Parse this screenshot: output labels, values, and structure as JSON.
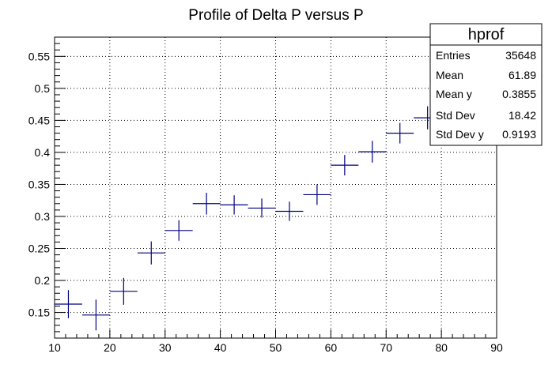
{
  "chart_data": {
    "type": "scatter",
    "title": "Profile of Delta P versus P",
    "xlabel": "",
    "ylabel": "",
    "xlim": [
      10,
      90
    ],
    "ylim": [
      0.11,
      0.58
    ],
    "x_ticks": [
      10,
      20,
      30,
      40,
      50,
      60,
      70,
      80,
      90
    ],
    "y_ticks": [
      0.15,
      0.2,
      0.25,
      0.3,
      0.35,
      0.4,
      0.45,
      0.5,
      0.55
    ],
    "grid": true,
    "marker_color": "#00007f",
    "series": [
      {
        "x": [
          12.5,
          17.5,
          22.5,
          27.5,
          32.5,
          37.5,
          42.5,
          47.5,
          52.5,
          57.5,
          62.5,
          67.5,
          72.5,
          77.5
        ],
        "y": [
          0.163,
          0.146,
          0.183,
          0.243,
          0.278,
          0.32,
          0.318,
          0.313,
          0.308,
          0.334,
          0.38,
          0.401,
          0.43,
          0.454
        ],
        "x_half_width": 2.5,
        "y_err": [
          0.022,
          0.024,
          0.021,
          0.018,
          0.016,
          0.017,
          0.015,
          0.015,
          0.015,
          0.016,
          0.016,
          0.017,
          0.016,
          0.018
        ]
      }
    ]
  },
  "stats_box": {
    "title": "hprof",
    "rows": [
      {
        "label": "Entries",
        "value": "35648"
      },
      {
        "label": "Mean",
        "value": "61.89"
      },
      {
        "label": "Mean y",
        "value": "0.3855"
      },
      {
        "label": "Std Dev",
        "value": "18.42"
      },
      {
        "label": "Std Dev y",
        "value": "0.9193"
      }
    ]
  }
}
